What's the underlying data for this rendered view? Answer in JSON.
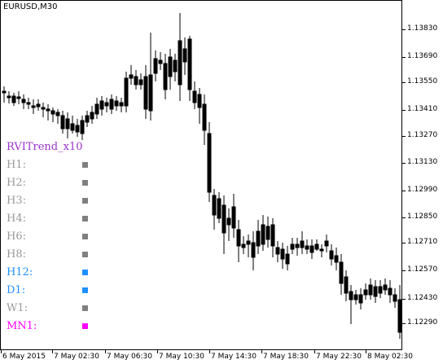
{
  "chart": {
    "symbol": "EURUSD,M30",
    "price_labels": [
      "1.13830",
      "1.13690",
      "1.13550",
      "1.13410",
      "1.13270",
      "1.13130",
      "1.12990",
      "1.12850",
      "1.12710",
      "1.12570",
      "1.12430",
      "1.12290"
    ],
    "time_labels": [
      "6 May 2015",
      "7 May 02:30",
      "7 May 06:30",
      "7 May 10:30",
      "7 May 14:30",
      "7 May 18:30",
      "7 May 22:30",
      "8 May 02:30"
    ]
  },
  "indicator": {
    "title": "RVITrend_x10",
    "rows": [
      {
        "label": "H1:",
        "color": "#808080"
      },
      {
        "label": "H2:",
        "color": "#808080"
      },
      {
        "label": "H3:",
        "color": "#808080"
      },
      {
        "label": "H4:",
        "color": "#808080"
      },
      {
        "label": "H6:",
        "color": "#808080"
      },
      {
        "label": "H8:",
        "color": "#808080"
      },
      {
        "label": "H12:",
        "color": "#1e90ff"
      },
      {
        "label": "D1:",
        "color": "#1e90ff"
      },
      {
        "label": "W1:",
        "color": "#808080"
      },
      {
        "label": "MN1:",
        "color": "#ff00ff"
      }
    ]
  },
  "colors": {
    "gray_state": "#808080",
    "blue_state": "#1e90ff",
    "magenta_state": "#ff00ff",
    "title_color": "#9933cc"
  }
}
